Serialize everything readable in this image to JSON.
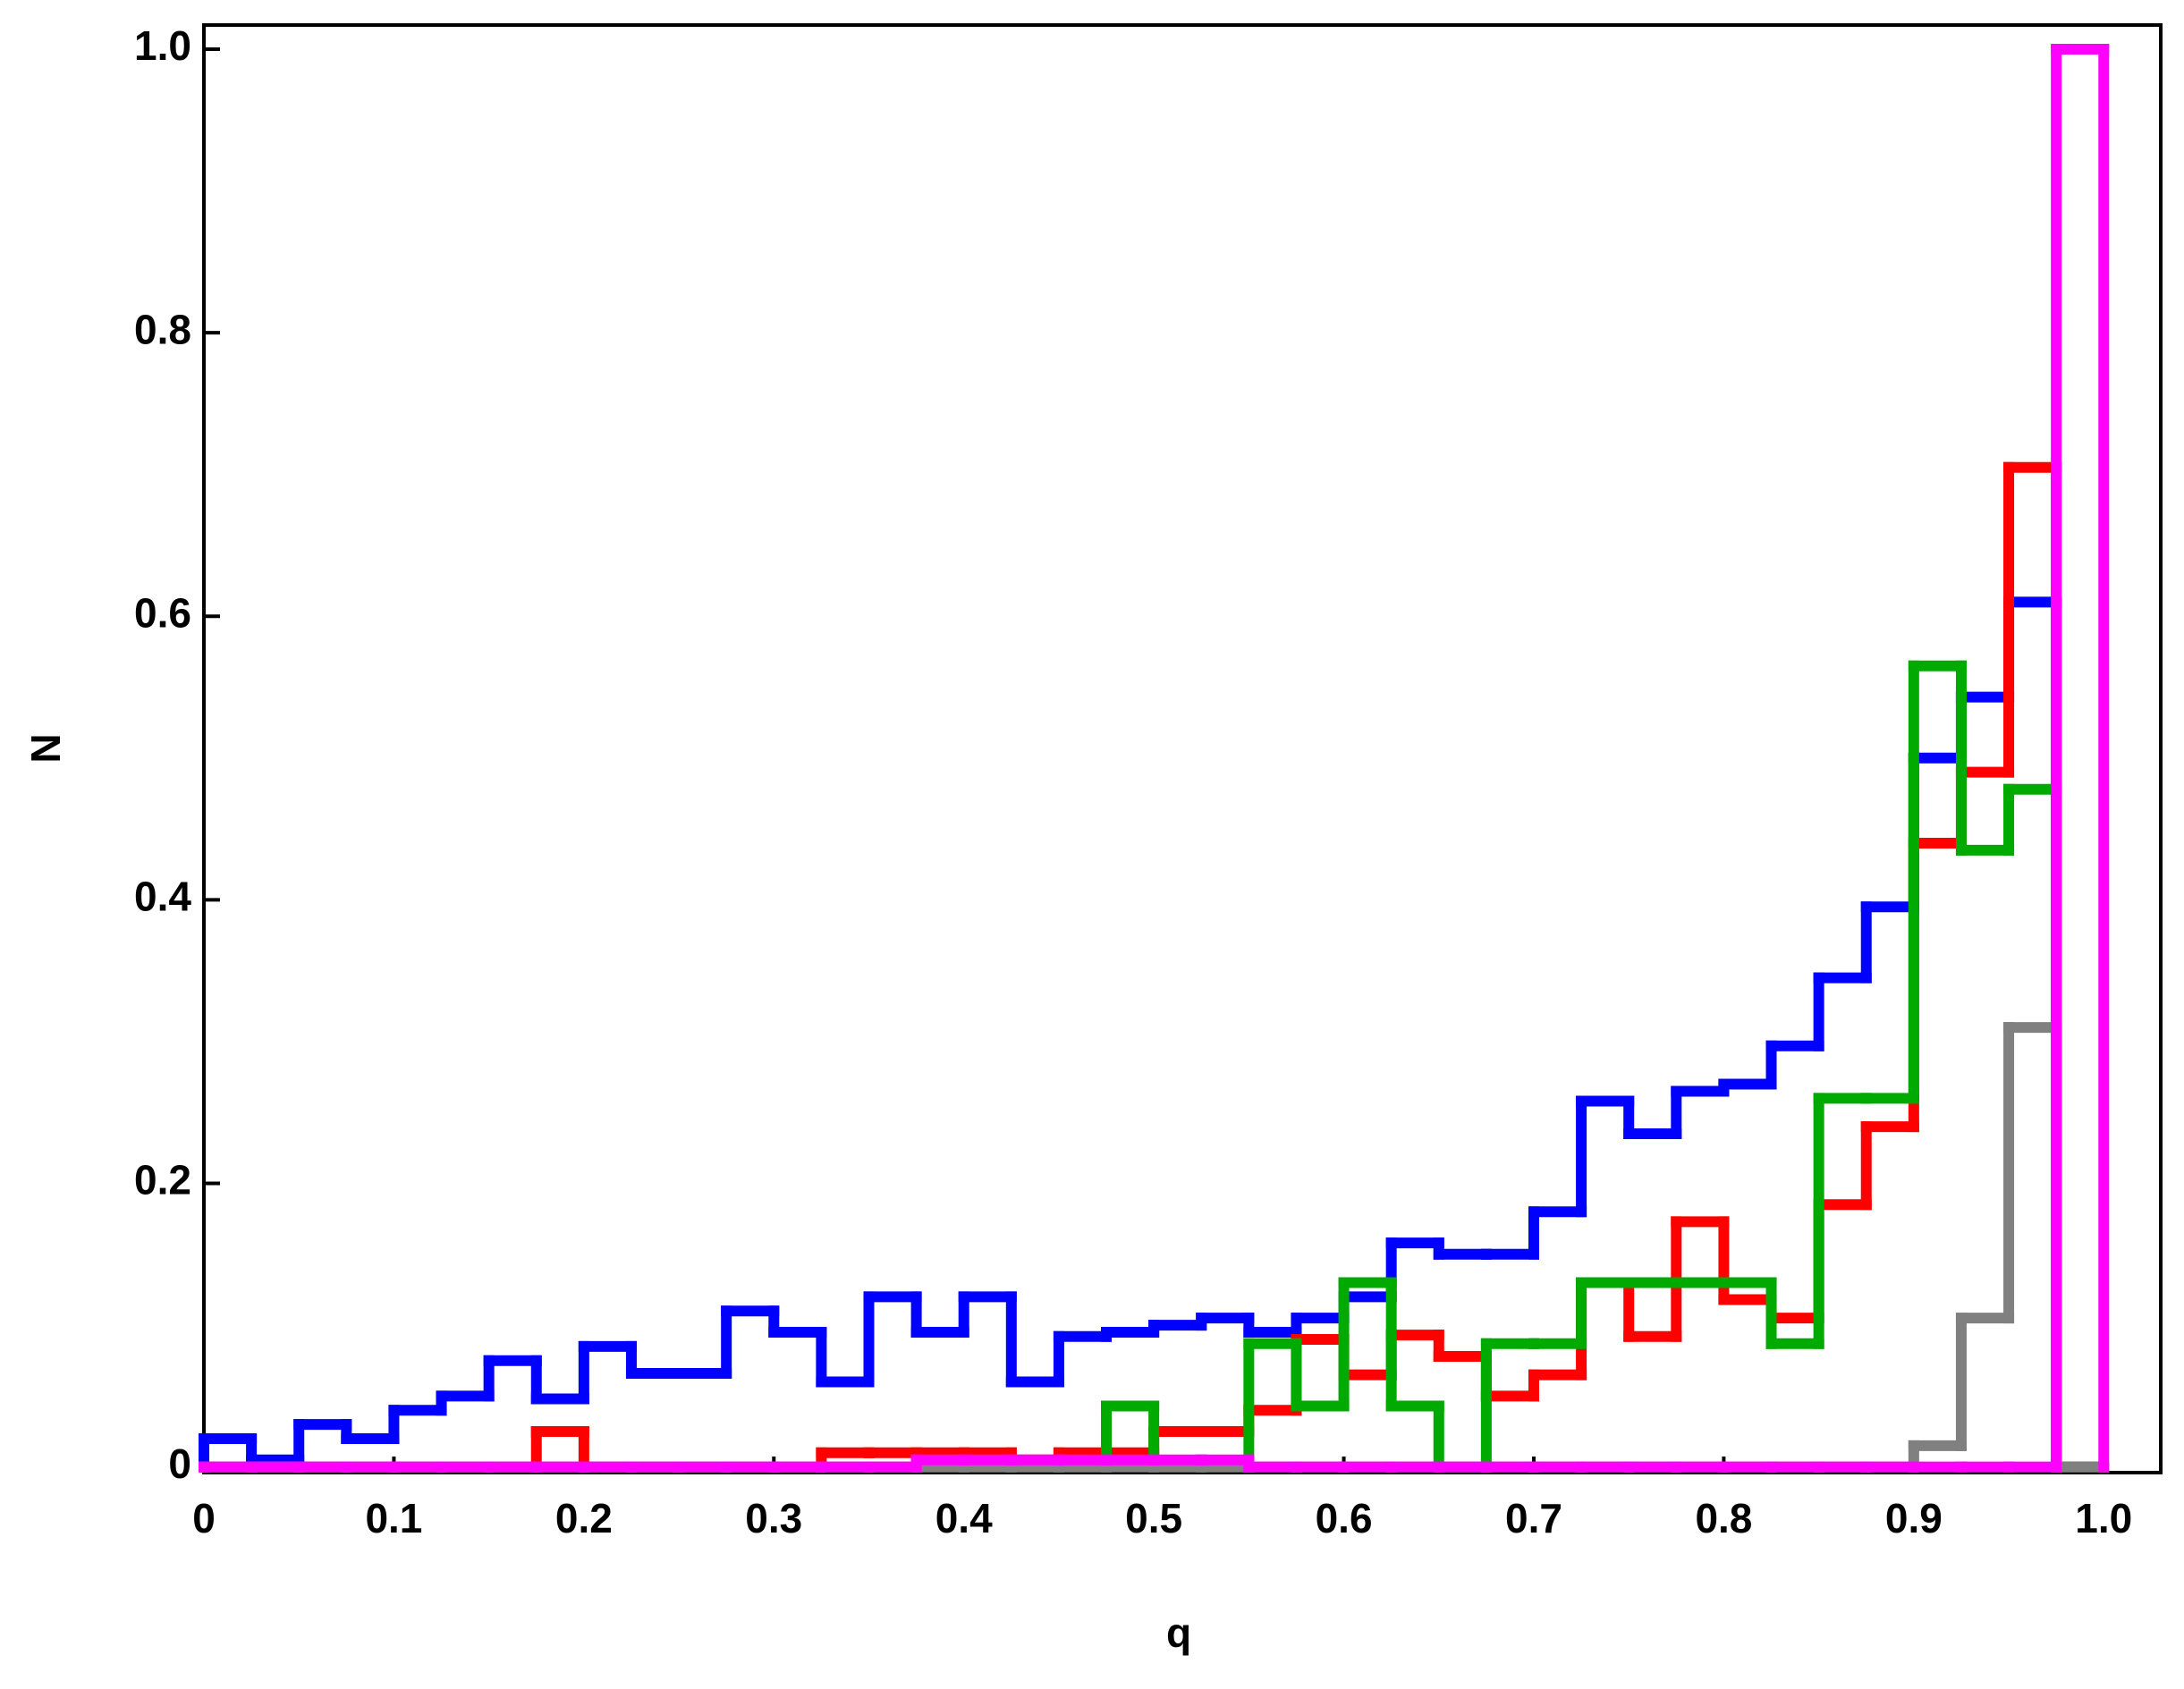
{
  "chart_data": {
    "type": "histogram",
    "xlabel": "q",
    "ylabel": "N",
    "bins": [
      0,
      0.025,
      0.05,
      0.075,
      0.1,
      0.125,
      0.15,
      0.175,
      0.2,
      0.225,
      0.25,
      0.275,
      0.3,
      0.325,
      0.35,
      0.375,
      0.4,
      0.425,
      0.45,
      0.475,
      0.5,
      0.525,
      0.55,
      0.575,
      0.6,
      0.625,
      0.65,
      0.675,
      0.7,
      0.725,
      0.75,
      0.775,
      0.8,
      0.825,
      0.85,
      0.875,
      0.9,
      0.925,
      0.95,
      0.975,
      1.0
    ],
    "series": [
      {
        "color": "#0000ff",
        "values": [
          0.02,
          0.005,
          0.03,
          0.02,
          0.04,
          0.05,
          0.075,
          0.048,
          0.085,
          0.066,
          0.066,
          0.11,
          0.095,
          0.06,
          0.12,
          0.095,
          0.12,
          0.06,
          0.092,
          0.095,
          0.1,
          0.105,
          0.095,
          0.105,
          0.12,
          0.158,
          0.15,
          0.15,
          0.18,
          0.258,
          0.235,
          0.265,
          0.27,
          0.297,
          0.345,
          0.395,
          0.5,
          0.543,
          0.61,
          0
        ]
      },
      {
        "color": "#ff0000",
        "values": [
          0,
          0,
          0,
          0,
          0,
          0,
          0,
          0.025,
          0,
          0,
          0,
          0,
          0,
          0.01,
          0.01,
          0.01,
          0.01,
          0.005,
          0.01,
          0.01,
          0.025,
          0.025,
          0.04,
          0.09,
          0.065,
          0.093,
          0.078,
          0.05,
          0.065,
          0.13,
          0.092,
          0.173,
          0.118,
          0.105,
          0.185,
          0.24,
          0.44,
          0.49,
          0.705,
          0
        ]
      },
      {
        "color": "#00aa00",
        "values": [
          0,
          0,
          0,
          0,
          0,
          0,
          0,
          0,
          0,
          0,
          0,
          0,
          0,
          0,
          0,
          0,
          0,
          0,
          0,
          0.043,
          0,
          0,
          0.087,
          0.043,
          0.13,
          0.043,
          0,
          0.087,
          0.087,
          0.13,
          0.13,
          0.13,
          0.13,
          0.087,
          0.26,
          0.26,
          0.565,
          0.435,
          0.478,
          0
        ]
      },
      {
        "color": "#808080",
        "values": [
          0,
          0,
          0,
          0,
          0,
          0,
          0,
          0,
          0,
          0,
          0,
          0,
          0,
          0,
          0,
          0,
          0,
          0,
          0,
          0,
          0,
          0,
          0,
          0,
          0,
          0,
          0,
          0,
          0,
          0,
          0,
          0,
          0,
          0,
          0,
          0,
          0.015,
          0.105,
          0.31,
          0
        ]
      },
      {
        "color": "#ff00ff",
        "values": [
          0,
          0,
          0,
          0,
          0,
          0,
          0,
          0,
          0,
          0,
          0,
          0,
          0,
          0,
          0,
          0.005,
          0.005,
          0.005,
          0.005,
          0.005,
          0.005,
          0.005,
          0,
          0,
          0,
          0,
          0,
          0,
          0,
          0,
          0,
          0,
          0,
          0,
          0,
          0,
          0,
          0,
          0,
          1.0
        ]
      }
    ],
    "xlim": [
      0,
      1.03
    ],
    "ylim": [
      -0.004,
      1.017
    ],
    "xticks": [
      0,
      0.1,
      0.2,
      0.3,
      0.4,
      0.5,
      0.6,
      0.7,
      0.8,
      0.9,
      {
        "value": 1,
        "label": "1.0"
      }
    ],
    "yticks": [
      0,
      0.2,
      0.4,
      0.6,
      0.8,
      {
        "value": 1,
        "label": "1.0"
      }
    ]
  }
}
